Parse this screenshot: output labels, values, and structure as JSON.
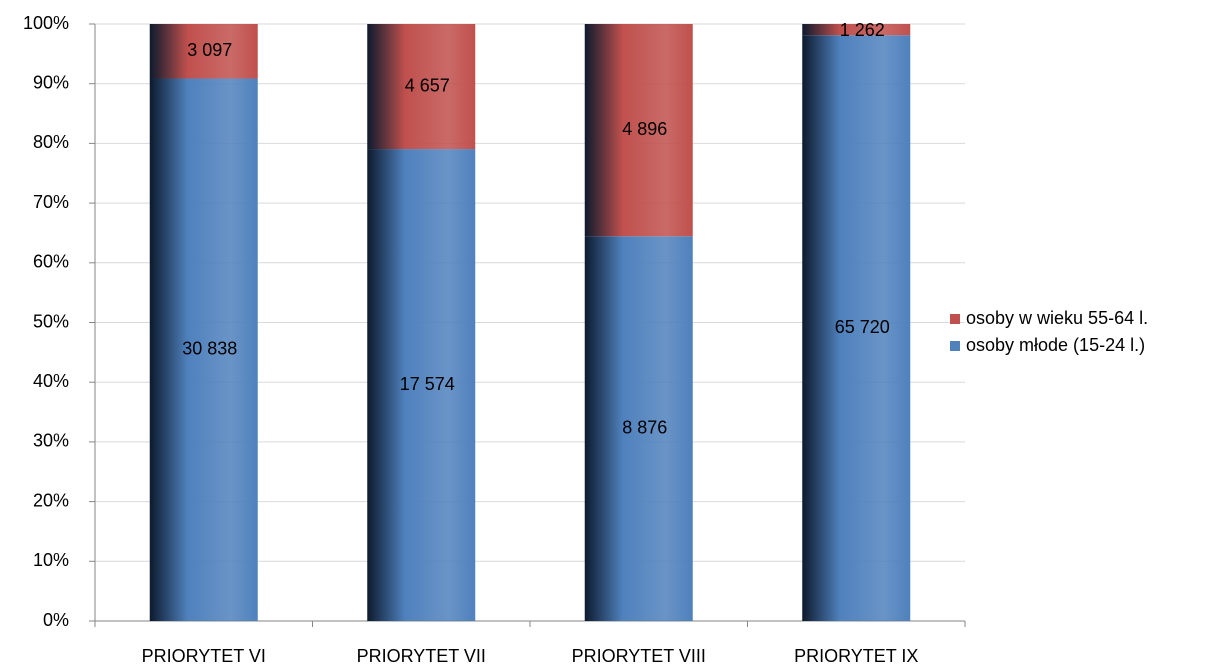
{
  "chart_data": {
    "type": "bar",
    "stacking": "percent",
    "categories": [
      "PRIORYTET VI",
      "PRIORYTET VII",
      "PRIORYTET VIII",
      "PRIORYTET IX"
    ],
    "series": [
      {
        "name": "osoby młode (15-24 l.)",
        "color": "#4f81bd",
        "values": [
          30838,
          17574,
          8876,
          65720
        ],
        "value_labels": [
          "30 838",
          "17 574",
          "8 876",
          "65 720"
        ]
      },
      {
        "name": "osoby w wieku 55-64 l.",
        "color": "#c0504d",
        "values": [
          3097,
          4657,
          4896,
          1262
        ],
        "value_labels": [
          "3 097",
          "4 657",
          "4 896",
          "1 262"
        ]
      }
    ],
    "ylim": [
      0,
      100
    ],
    "yticks": [
      {
        "value": 0,
        "label": "0%"
      },
      {
        "value": 10,
        "label": "10%"
      },
      {
        "value": 20,
        "label": "20%"
      },
      {
        "value": 30,
        "label": "30%"
      },
      {
        "value": 40,
        "label": "40%"
      },
      {
        "value": 50,
        "label": "50%"
      },
      {
        "value": 60,
        "label": "60%"
      },
      {
        "value": 70,
        "label": "70%"
      },
      {
        "value": 80,
        "label": "80%"
      },
      {
        "value": 90,
        "label": "90%"
      },
      {
        "value": 100,
        "label": "100%"
      }
    ],
    "grid": true,
    "legend": "right"
  }
}
